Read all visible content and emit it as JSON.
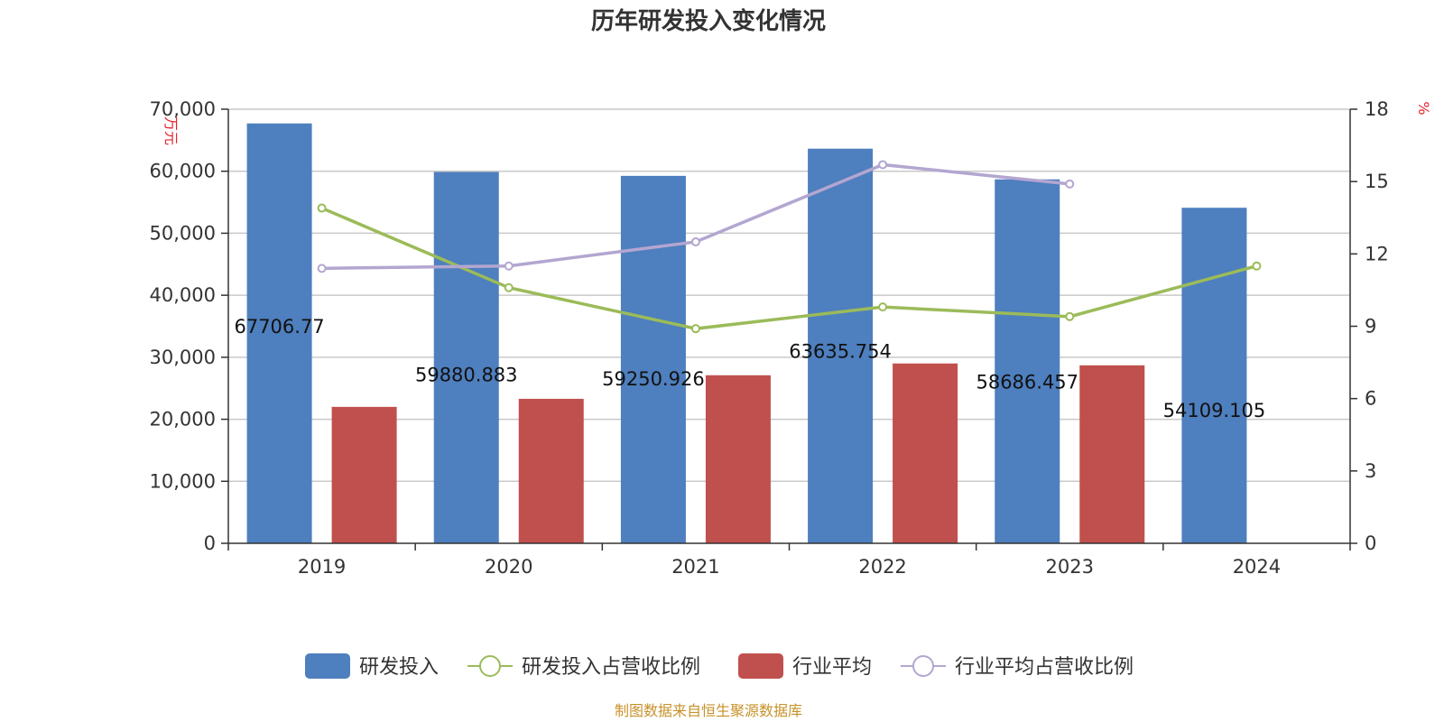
{
  "chart_data": {
    "type": "bar",
    "title": "历年研发投入变化情况",
    "categories": [
      "2019",
      "2020",
      "2021",
      "2022",
      "2023",
      "2024"
    ],
    "y_left": {
      "unit_label": "万元",
      "range": [
        0,
        70000
      ],
      "ticks": [
        "0",
        "10,000",
        "20,000",
        "30,000",
        "40,000",
        "50,000",
        "60,000",
        "70,000"
      ]
    },
    "y_right": {
      "unit_label": "%",
      "range": [
        0,
        18
      ],
      "ticks": [
        "0",
        "3",
        "6",
        "9",
        "12",
        "15",
        "18"
      ]
    },
    "series": [
      {
        "name": "研发投入",
        "kind": "bar",
        "axis": "left",
        "color": "#4e7fbe",
        "values": [
          67706.77,
          59880.883,
          59250.926,
          63635.754,
          58686.457,
          54109.105
        ],
        "labels": [
          "67706.77",
          "59880.883",
          "59250.926",
          "63635.754",
          "58686.457",
          "54109.105"
        ]
      },
      {
        "name": "研发投入占营收比例",
        "kind": "line",
        "axis": "right",
        "color": "#9bbb59",
        "values": [
          13.9,
          10.6,
          8.9,
          9.8,
          9.4,
          11.5
        ]
      },
      {
        "name": "行业平均",
        "kind": "bar",
        "axis": "left",
        "color": "#c0504d",
        "values": [
          22000,
          23300,
          27100,
          29000,
          28700,
          null
        ]
      },
      {
        "name": "行业平均占营收比例",
        "kind": "line",
        "axis": "right",
        "color": "#b3a6d0",
        "values": [
          11.4,
          11.5,
          12.5,
          15.7,
          14.9,
          null
        ]
      }
    ],
    "grid": true,
    "legend_position": "bottom",
    "source": "制图数据来自恒生聚源数据库"
  }
}
